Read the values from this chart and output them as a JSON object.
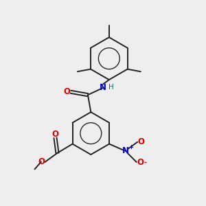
{
  "bg_color": "#eeeeee",
  "bond_color": "#222222",
  "bond_width": 1.4,
  "N_color": "#0000cc",
  "O_color": "#dd0000",
  "H_color": "#007070",
  "font_size": 8.5,
  "fig_width": 3.0,
  "fig_height": 3.0,
  "dpi": 100,
  "xlim": [
    0,
    10
  ],
  "ylim": [
    0,
    10
  ]
}
